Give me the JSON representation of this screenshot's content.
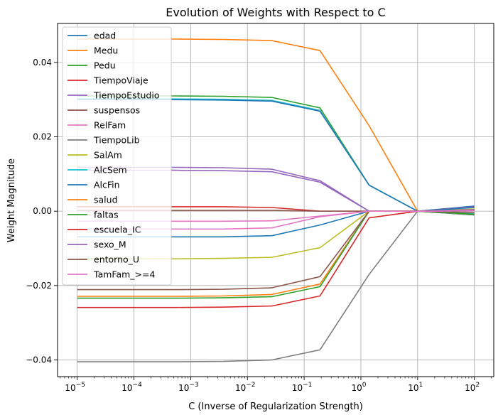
{
  "chart_data": {
    "type": "line",
    "title": "Evolution of Weights with Respect to C",
    "xlabel": "C (Inverse of Regularization Strength)",
    "ylabel": "Weight Magnitude",
    "xscale": "log",
    "xlim": [
      4.5e-06,
      220
    ],
    "ylim": [
      -0.0445,
      0.0505
    ],
    "grid": true,
    "legend_position": "top-left",
    "x": [
      1e-05,
      7.2e-05,
      0.00052,
      0.0037,
      0.027,
      0.19,
      1.4,
      10.0,
      100.0
    ],
    "x_ticks": [
      {
        "value": 1e-05,
        "base": "10",
        "exp": "−5"
      },
      {
        "value": 0.0001,
        "base": "10",
        "exp": "−4"
      },
      {
        "value": 0.001,
        "base": "10",
        "exp": "−3"
      },
      {
        "value": 0.01,
        "base": "10",
        "exp": "−2"
      },
      {
        "value": 0.1,
        "base": "10",
        "exp": "−1"
      },
      {
        "value": 1,
        "base": "10",
        "exp": "0"
      },
      {
        "value": 10,
        "base": "10",
        "exp": "1"
      },
      {
        "value": 100,
        "base": "10",
        "exp": "2"
      }
    ],
    "y_ticks": [
      {
        "value": 0.04,
        "label": "0.04"
      },
      {
        "value": 0.02,
        "label": "0.02"
      },
      {
        "value": 0.0,
        "label": "0.00"
      },
      {
        "value": -0.02,
        "label": "−0.02"
      },
      {
        "value": -0.04,
        "label": "−0.04"
      }
    ],
    "series": [
      {
        "name": "edad",
        "color": "#1f77b4",
        "values": [
          -0.0069,
          -0.0069,
          -0.0069,
          -0.0069,
          -0.0066,
          -0.0037,
          0.0,
          0.0,
          0.0014
        ]
      },
      {
        "name": "Medu",
        "color": "#ff7f0e",
        "values": [
          0.0463,
          0.0463,
          0.0463,
          0.0462,
          0.0459,
          0.0432,
          0.023,
          0.0,
          0.0005
        ]
      },
      {
        "name": "Pedu",
        "color": "#2ca02c",
        "values": [
          0.031,
          0.031,
          0.031,
          0.0309,
          0.0306,
          0.0278,
          0.007,
          0.0,
          -0.001
        ]
      },
      {
        "name": "TiempoViaje",
        "color": "#d62728",
        "values": [
          0.0012,
          0.0012,
          0.0012,
          0.0012,
          0.001,
          0.0,
          0.0,
          0.0,
          0.0003
        ]
      },
      {
        "name": "TiempoEstudio",
        "color": "#9467bd",
        "values": [
          0.0118,
          0.0118,
          0.0118,
          0.0117,
          0.0113,
          0.0082,
          0.0,
          0.0,
          0.0012
        ]
      },
      {
        "name": "suspensos",
        "color": "#8c564b",
        "values": [
          0.0002,
          0.0002,
          0.0002,
          0.0002,
          0.0002,
          0.0,
          0.0,
          0.0,
          -0.0008
        ]
      },
      {
        "name": "RelFam",
        "color": "#e377c2",
        "values": [
          -0.0048,
          -0.0048,
          -0.0048,
          -0.0048,
          -0.0045,
          -0.0015,
          0.0,
          0.0,
          0.0002
        ]
      },
      {
        "name": "TiempoLib",
        "color": "#7f7f7f",
        "values": [
          -0.0405,
          -0.0405,
          -0.0405,
          -0.0404,
          -0.04,
          -0.0373,
          -0.017,
          0.0,
          -0.001
        ]
      },
      {
        "name": "SalAm",
        "color": "#bcbd22",
        "values": [
          -0.0128,
          -0.0128,
          -0.0128,
          -0.0127,
          -0.0124,
          -0.0098,
          0.0,
          0.0,
          0.0006
        ]
      },
      {
        "name": "AlcSem",
        "color": "#17becf",
        "values": [
          0.0302,
          0.0302,
          0.0302,
          0.0301,
          0.0298,
          0.0271,
          0.007,
          0.0,
          -0.0007
        ]
      },
      {
        "name": "AlcFin",
        "color": "#1f77b4",
        "values": [
          0.03,
          0.03,
          0.03,
          0.0299,
          0.0296,
          0.0269,
          0.007,
          0.0,
          0.001
        ]
      },
      {
        "name": "salud",
        "color": "#ff7f0e",
        "values": [
          -0.0229,
          -0.0229,
          -0.0229,
          -0.0228,
          -0.0224,
          -0.0196,
          0.0,
          0.0,
          0.0003
        ]
      },
      {
        "name": "faltas",
        "color": "#2ca02c",
        "values": [
          -0.0234,
          -0.0234,
          -0.0234,
          -0.0233,
          -0.023,
          -0.0203,
          0.0,
          0.0,
          -0.0008
        ]
      },
      {
        "name": "escuela_IC",
        "color": "#d62728",
        "values": [
          -0.0259,
          -0.0259,
          -0.0259,
          -0.0258,
          -0.0255,
          -0.0228,
          -0.0018,
          0.0,
          0.0003
        ]
      },
      {
        "name": "sexo_M",
        "color": "#9467bd",
        "values": [
          0.011,
          0.011,
          0.011,
          0.0109,
          0.0106,
          0.0078,
          0.0,
          0.0,
          0.0004
        ]
      },
      {
        "name": "entorno_U",
        "color": "#8c564b",
        "values": [
          -0.0211,
          -0.0211,
          -0.0211,
          -0.021,
          -0.0206,
          -0.0176,
          0.0,
          0.0,
          -0.0003
        ]
      },
      {
        "name": "TamFam_>=4",
        "color": "#e377c2",
        "values": [
          -0.0027,
          -0.0027,
          -0.0027,
          -0.0027,
          -0.0026,
          -0.0013,
          0.0,
          0.0,
          0.0001
        ]
      }
    ]
  }
}
